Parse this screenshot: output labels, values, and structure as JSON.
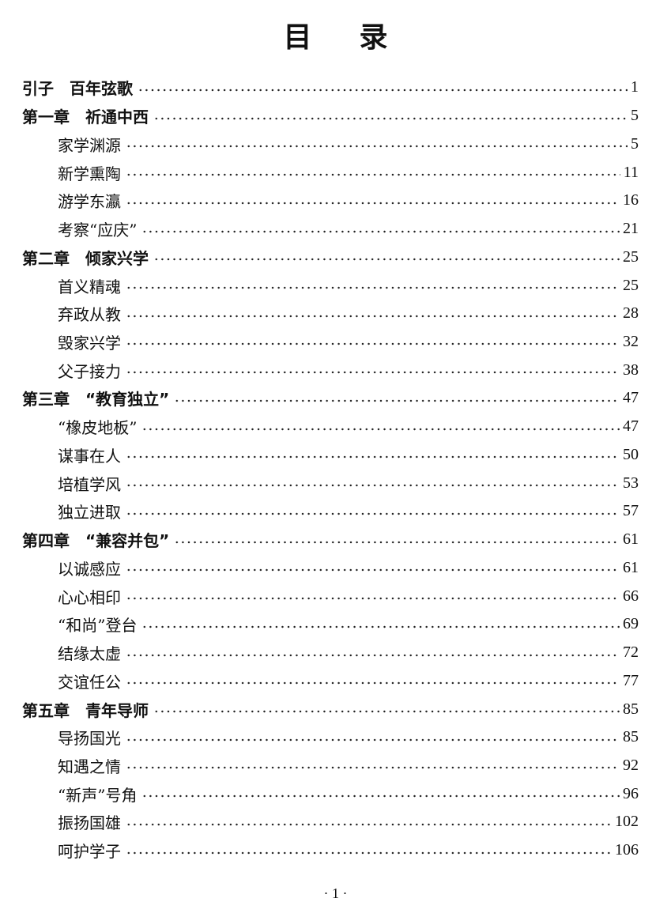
{
  "title": "目录",
  "entries": [
    {
      "type": "chapter",
      "label": "引子　百年弦歌",
      "page": "1"
    },
    {
      "type": "chapter",
      "label": "第一章　祈通中西",
      "page": "5"
    },
    {
      "type": "section",
      "label": "家学渊源",
      "page": "5"
    },
    {
      "type": "section",
      "label": "新学熏陶",
      "page": "11"
    },
    {
      "type": "section",
      "label": "游学东瀛",
      "page": "16"
    },
    {
      "type": "section",
      "label": "考察“应庆”",
      "page": "21"
    },
    {
      "type": "chapter",
      "label": "第二章　倾家兴学",
      "page": "25"
    },
    {
      "type": "section",
      "label": "首义精魂",
      "page": "25"
    },
    {
      "type": "section",
      "label": "弃政从教",
      "page": "28"
    },
    {
      "type": "section",
      "label": "毁家兴学",
      "page": "32"
    },
    {
      "type": "section",
      "label": "父子接力",
      "page": "38"
    },
    {
      "type": "chapter",
      "label": "第三章　“教育独立”",
      "page": "47"
    },
    {
      "type": "section",
      "label": "“橡皮地板”",
      "page": "47"
    },
    {
      "type": "section",
      "label": "谋事在人",
      "page": "50"
    },
    {
      "type": "section",
      "label": "培植学风",
      "page": "53"
    },
    {
      "type": "section",
      "label": "独立进取",
      "page": "57"
    },
    {
      "type": "chapter",
      "label": "第四章　“兼容并包”",
      "page": "61"
    },
    {
      "type": "section",
      "label": "以诚感应",
      "page": "61"
    },
    {
      "type": "section",
      "label": "心心相印",
      "page": "66"
    },
    {
      "type": "section",
      "label": "“和尚”登台",
      "page": "69"
    },
    {
      "type": "section",
      "label": "结缘太虚",
      "page": "72"
    },
    {
      "type": "section",
      "label": "交谊任公",
      "page": "77"
    },
    {
      "type": "chapter",
      "label": "第五章　青年导师",
      "page": "85"
    },
    {
      "type": "section",
      "label": "导扬国光",
      "page": "85"
    },
    {
      "type": "section",
      "label": "知遇之情",
      "page": "92"
    },
    {
      "type": "section",
      "label": "“新声”号角",
      "page": "96"
    },
    {
      "type": "section",
      "label": "振扬国雄",
      "page": "102"
    },
    {
      "type": "section",
      "label": "呵护学子",
      "page": "106"
    }
  ],
  "footer": "· 1 ·"
}
